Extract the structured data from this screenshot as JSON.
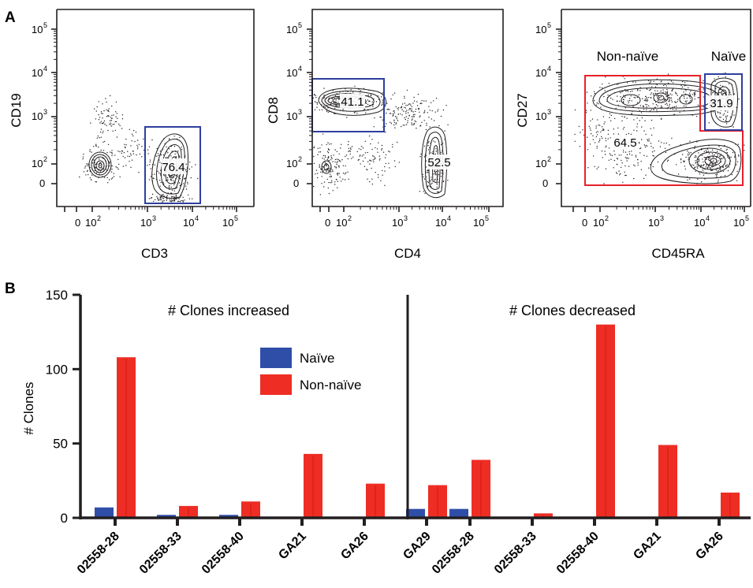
{
  "colors": {
    "naive": "#2f4ea8",
    "non_naive": "#ee2d24",
    "gate_blue": "#2e3f9e",
    "gate_red": "#e8202a",
    "axis": "#231f20"
  },
  "panel_a": {
    "label": "A",
    "tick_labels": {
      "e5": "10",
      "e4": "10",
      "e3": "10",
      "e2": "10",
      "zero": "0",
      "e5_exp": "5",
      "e4_exp": "4",
      "e3_exp": "3",
      "e2_exp": "2"
    },
    "plots": [
      {
        "ylabel": "CD19",
        "xlabel": "CD3",
        "gates": [
          {
            "value": "76.4",
            "color": "blue"
          }
        ]
      },
      {
        "ylabel": "CD8",
        "xlabel": "CD4",
        "gates": [
          {
            "value": "41.1",
            "color": "blue"
          },
          {
            "value": "52.5",
            "color": "none"
          }
        ]
      },
      {
        "ylabel": "CD27",
        "xlabel": "CD45RA",
        "annotations": [
          "Non-naïve",
          "Naïve"
        ],
        "gates": [
          {
            "value": "31.9",
            "color": "blue"
          },
          {
            "value": "64.5",
            "color": "red"
          }
        ]
      }
    ]
  },
  "panel_b": {
    "label": "B"
  },
  "chart_data": {
    "type": "bar",
    "ylabel": "# Clones",
    "ylim": [
      0,
      150
    ],
    "yticks": [
      0,
      50,
      100,
      150
    ],
    "legend": {
      "placement": "top-left of right group",
      "entries": [
        "Naïve",
        "Non-naïve"
      ]
    },
    "groups": [
      {
        "title": "# Clones increased",
        "categories": [
          "02558-28",
          "02558-33",
          "02558-40",
          "GA21",
          "GA26",
          "GA29"
        ],
        "series": [
          {
            "name": "Naïve",
            "values": [
              7,
              2,
              2,
              0,
              0,
              6
            ]
          },
          {
            "name": "Non-naïve",
            "values": [
              108,
              8,
              11,
              43,
              23,
              22
            ]
          }
        ]
      },
      {
        "title": "# Clones decreased",
        "categories": [
          "02558-28",
          "02558-33",
          "02558-40",
          "GA21",
          "GA26",
          "GA29"
        ],
        "series": [
          {
            "name": "Naïve",
            "values": [
              6,
              0,
              0,
              0,
              0,
              2
            ]
          },
          {
            "name": "Non-naïve",
            "values": [
              39,
              3,
              130,
              49,
              17,
              2
            ]
          }
        ]
      }
    ]
  }
}
